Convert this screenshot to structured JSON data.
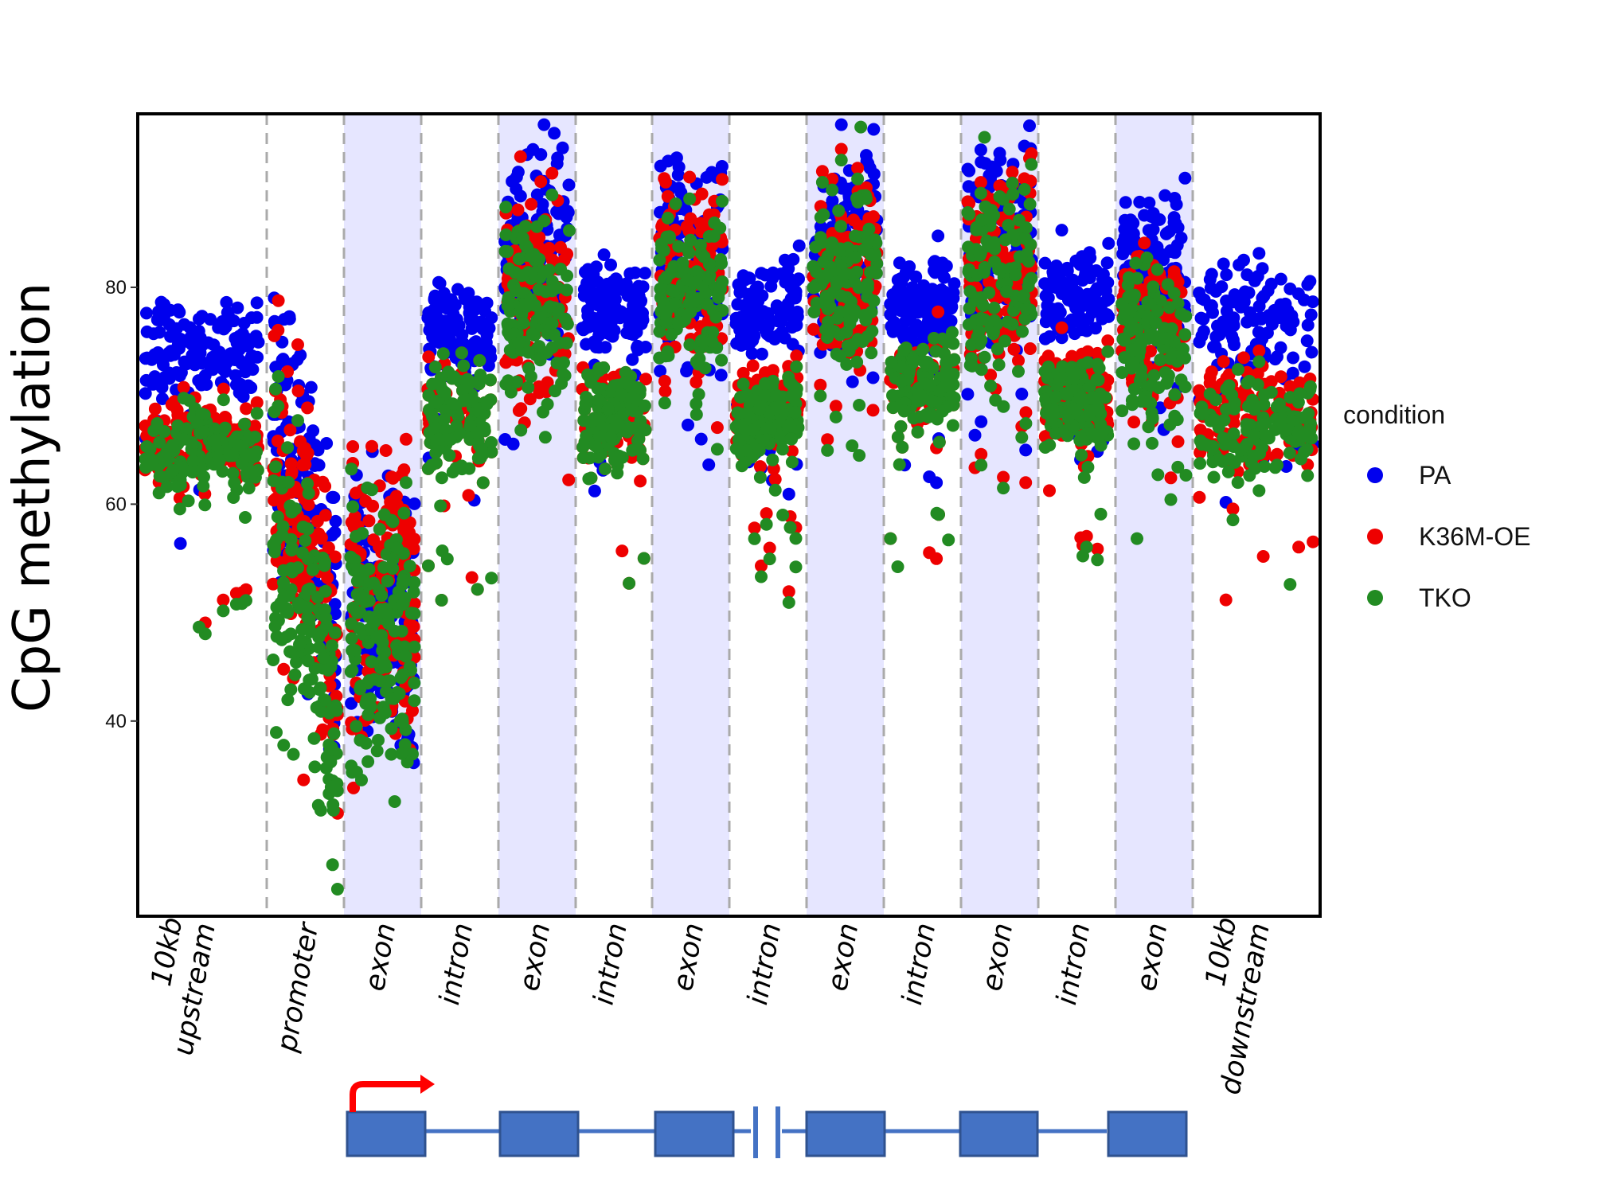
{
  "chart_data": {
    "type": "scatter",
    "title": "",
    "xlabel": "",
    "ylabel": "CpG methylation",
    "ylim": [
      22,
      96
    ],
    "yticks": [
      40,
      60,
      80
    ],
    "grid": false,
    "legend_position": "right",
    "legend_title": "condition",
    "regions": [
      {
        "label": "10kb\nupstream",
        "shaded": false
      },
      {
        "label": "promoter",
        "shaded": false
      },
      {
        "label": "exon",
        "shaded": true
      },
      {
        "label": "intron",
        "shaded": false
      },
      {
        "label": "exon",
        "shaded": true
      },
      {
        "label": "intron",
        "shaded": false
      },
      {
        "label": "exon",
        "shaded": true
      },
      {
        "label": "intron",
        "shaded": false
      },
      {
        "label": "exon",
        "shaded": true
      },
      {
        "label": "intron",
        "shaded": false
      },
      {
        "label": "exon",
        "shaded": true
      },
      {
        "label": "intron",
        "shaded": false
      },
      {
        "label": "exon",
        "shaded": true
      },
      {
        "label": "10kb\ndownstream",
        "shaded": false
      }
    ],
    "series": [
      {
        "name": "PA",
        "color": "#0000ee",
        "region_means": [
          74,
          60,
          50,
          76,
          84,
          78,
          84,
          78,
          85,
          78,
          85,
          79,
          82,
          77
        ]
      },
      {
        "name": "K36M-OE",
        "color": "#ee0000",
        "region_means": [
          66,
          55,
          52,
          68,
          80,
          68,
          82,
          69,
          82,
          71,
          82,
          70,
          77,
          68
        ]
      },
      {
        "name": "TKO",
        "color": "#228b22",
        "region_means": [
          65,
          48,
          48,
          68,
          78,
          68,
          80,
          68,
          81,
          71,
          81,
          69,
          75,
          67
        ]
      }
    ],
    "shade_color": "#e6e6ff",
    "divider_color": "#aaaaaa"
  },
  "gene_model": {
    "exon_color": "#4472c4",
    "exon_border": "#2f528f",
    "tss_arrow_color": "#ff0000"
  }
}
